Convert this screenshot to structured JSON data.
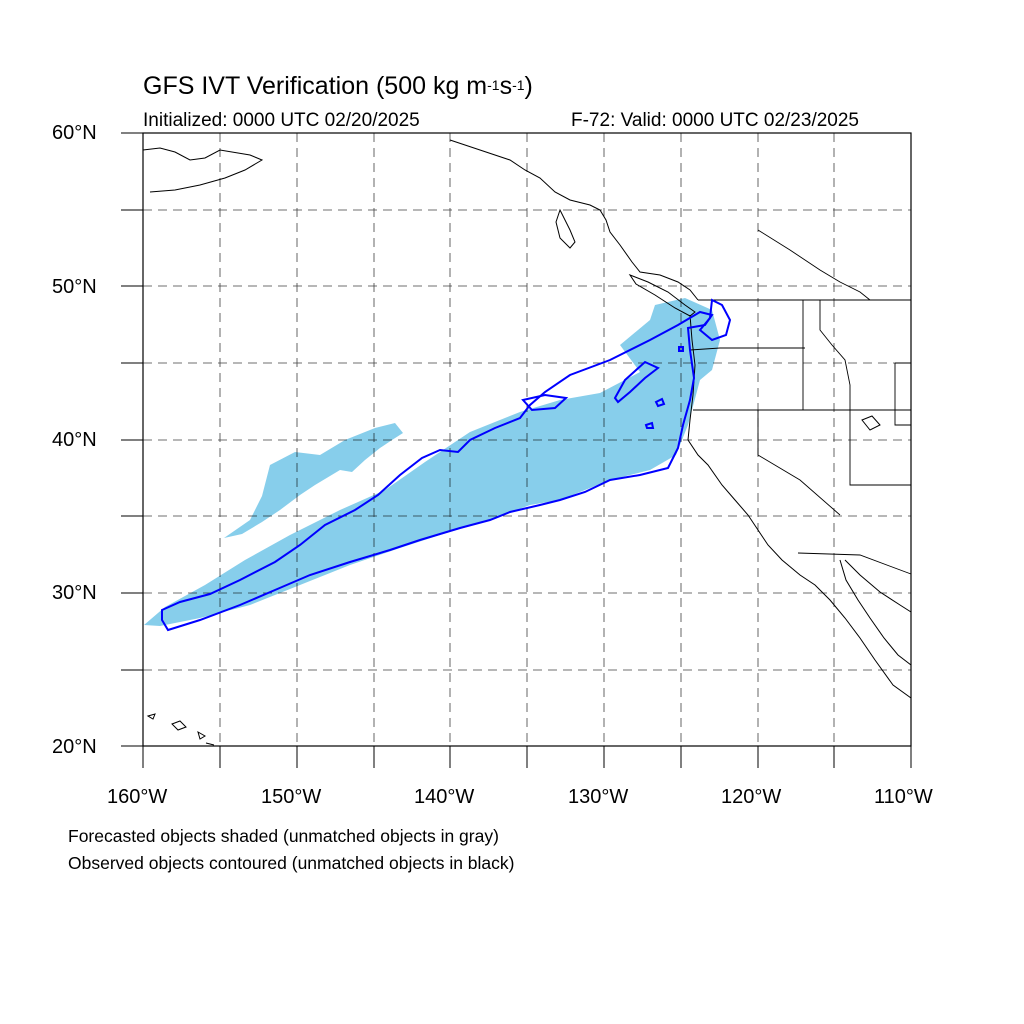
{
  "title": {
    "main": "GFS IVT Verification (500 kg m",
    "exp1": "-1",
    "mid": "s",
    "exp2": "-1",
    "end": ")"
  },
  "initialized": "Initialized: 0000 UTC 02/20/2025",
  "valid": "F-72: Valid: 0000 UTC 02/23/2025",
  "lat_labels": [
    "60°N",
    "50°N",
    "40°N",
    "30°N",
    "20°N"
  ],
  "lon_labels": [
    "160°W",
    "150°W",
    "140°W",
    "130°W",
    "120°W",
    "110°W"
  ],
  "notes": [
    "Forecasted objects shaded (unmatched objects in gray)",
    "Observed objects contoured (unmatched objects in black)"
  ],
  "colors": {
    "forecast_fill": "#87CEEB",
    "observed_contour": "#0000FF",
    "coastline": "#000000",
    "grid": "#000000"
  },
  "map_extent": {
    "lon_min": -160,
    "lon_max": -110,
    "lat_min": 20,
    "lat_max": 60
  }
}
